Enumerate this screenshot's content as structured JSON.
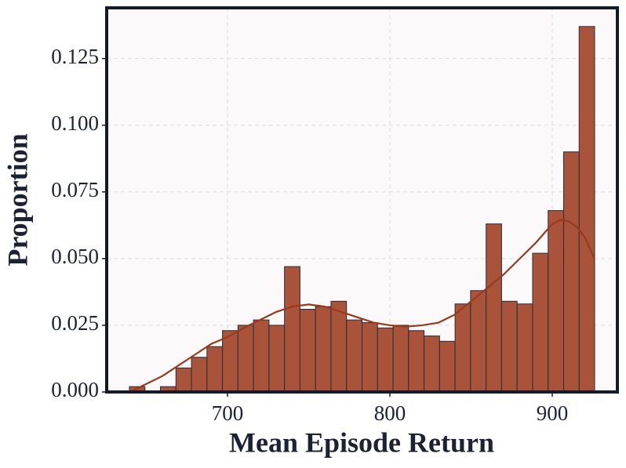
{
  "chart_data": {
    "type": "histogram",
    "x_label": "Mean Episode Return",
    "y_label": "Proportion",
    "bins": [
      639.6,
      649.15,
      658.7,
      668.25,
      677.8,
      687.35,
      696.9,
      706.45,
      716.0,
      725.55,
      735.1,
      744.65,
      754.2,
      763.75,
      773.3,
      782.85,
      792.4,
      801.95,
      811.5,
      821.05,
      830.6,
      840.15,
      849.7,
      859.25,
      868.8,
      878.35,
      887.9,
      897.45,
      907.0,
      916.55,
      926.1
    ],
    "values": [
      0.002,
      0,
      0.002,
      0.009,
      0.013,
      0.017,
      0.023,
      0.025,
      0.027,
      0.025,
      0.047,
      0.031,
      0.032,
      0.034,
      0.027,
      0.026,
      0.024,
      0.025,
      0.023,
      0.021,
      0.019,
      0.033,
      0.038,
      0.063,
      0.034,
      0.033,
      0.052,
      0.068,
      0.09,
      0.137
    ],
    "color": "#a8533a",
    "edge_color": "#2b2d3c",
    "kde": {
      "x": [
        640,
        650,
        660,
        670,
        680,
        690,
        700,
        710,
        720,
        730,
        740,
        750,
        760,
        770,
        780,
        790,
        800,
        810,
        820,
        830,
        840,
        850,
        860,
        870,
        880,
        890,
        900,
        905,
        910,
        915,
        920,
        926
      ],
      "values": [
        0.0,
        0.003,
        0.006,
        0.01,
        0.014,
        0.018,
        0.0206,
        0.024,
        0.027,
        0.03,
        0.032,
        0.0328,
        0.032,
        0.03,
        0.028,
        0.026,
        0.025,
        0.0245,
        0.025,
        0.026,
        0.029,
        0.034,
        0.039,
        0.044,
        0.05,
        0.056,
        0.063,
        0.0645,
        0.064,
        0.062,
        0.058,
        0.05
      ],
      "color": "#9a3a1c"
    },
    "xlim": [
      625.6,
      940.1
    ],
    "ylim": [
      0,
      0.144
    ],
    "xticks": [
      700,
      800,
      900
    ],
    "yticks": [
      {
        "value": 0,
        "label": "0.000"
      },
      0.025,
      {
        "value": 0.05,
        "label": "0.050"
      },
      0.075,
      {
        "value": 0.1,
        "label": "0.100"
      },
      0.125
    ],
    "grid": true
  }
}
